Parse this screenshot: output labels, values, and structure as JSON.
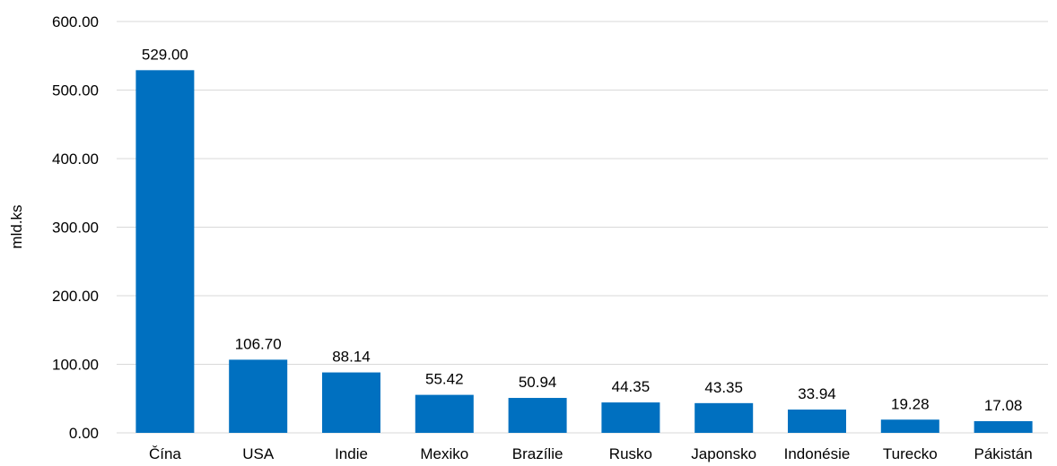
{
  "chart_data": {
    "type": "bar",
    "title": "",
    "xlabel": "",
    "ylabel": "mld.ks",
    "ylim": [
      0,
      600
    ],
    "yticks": [
      "0.00",
      "100.00",
      "200.00",
      "300.00",
      "400.00",
      "500.00",
      "600.00"
    ],
    "ytick_values": [
      0,
      100,
      200,
      300,
      400,
      500,
      600
    ],
    "categories": [
      "Čína",
      "USA",
      "Indie",
      "Mexiko",
      "Brazílie",
      "Rusko",
      "Japonsko",
      "Indonésie",
      "Turecko",
      "Pákistán"
    ],
    "values": [
      529.0,
      106.7,
      88.14,
      55.42,
      50.94,
      44.35,
      43.35,
      33.94,
      19.28,
      17.08
    ],
    "value_labels": [
      "529.00",
      "106.70",
      "88.14",
      "55.42",
      "50.94",
      "44.35",
      "43.35",
      "33.94",
      "19.28",
      "17.08"
    ],
    "bar_color": "#0070c0",
    "grid": true,
    "legend": "none"
  }
}
